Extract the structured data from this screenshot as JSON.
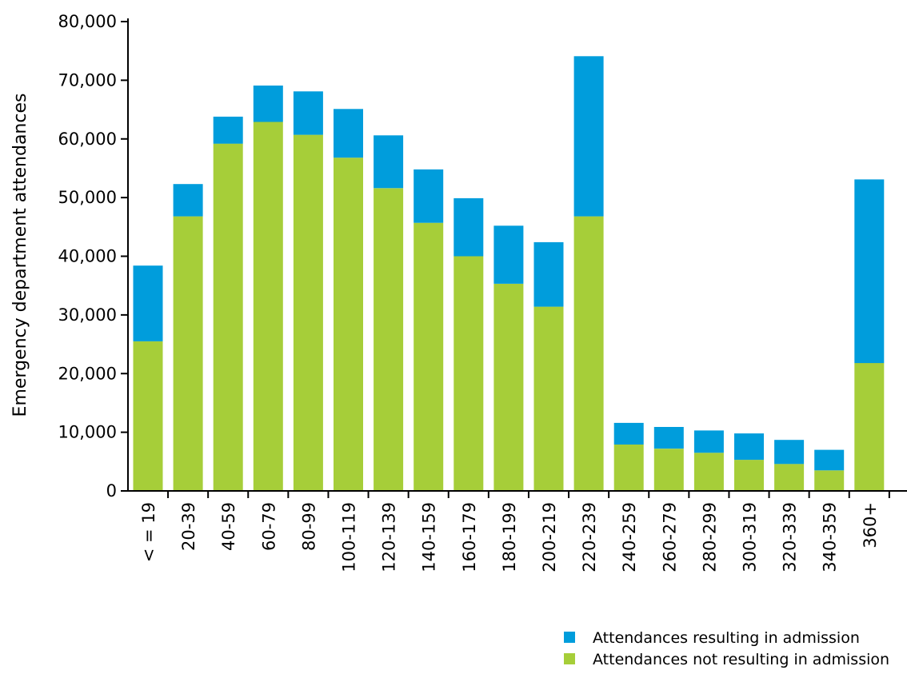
{
  "chart_data": {
    "type": "bar",
    "stacked": true,
    "title": "",
    "xlabel": "",
    "ylabel": "Emergency department attendances",
    "ylim": [
      0,
      80000
    ],
    "yticks": [
      "0",
      "10,000",
      "20,000",
      "30,000",
      "40,000",
      "50,000",
      "60,000",
      "70,000",
      "80,000"
    ],
    "categories": [
      "< = 19",
      "20-39",
      "40-59",
      "60-79",
      "80-99",
      "100-119",
      "120-139",
      "140-159",
      "160-179",
      "180-199",
      "200-219",
      "220-239",
      "240-259",
      "260-279",
      "280-299",
      "300-319",
      "320-339",
      "340-359",
      "360+"
    ],
    "series": [
      {
        "name": "Attendances not resulting in admission",
        "color": "#a6ce39",
        "values": [
          25500,
          46800,
          59200,
          62900,
          60700,
          56800,
          51600,
          45700,
          40000,
          35300,
          31400,
          46800,
          7900,
          7200,
          6500,
          5300,
          4600,
          3500,
          21800
        ]
      },
      {
        "name": "Attendances resulting in admission",
        "color": "#009ddc",
        "values": [
          12900,
          5500,
          4600,
          6200,
          7400,
          8300,
          9000,
          9100,
          9900,
          9900,
          11000,
          27300,
          3700,
          3700,
          3800,
          4500,
          4100,
          3500,
          31300
        ]
      }
    ],
    "grid": false,
    "legend": "bottom-right"
  },
  "legend_items": [
    {
      "label": "Attendances resulting in admission",
      "color": "#009ddc"
    },
    {
      "label": "Attendances not resulting in admission",
      "color": "#a6ce39"
    }
  ]
}
